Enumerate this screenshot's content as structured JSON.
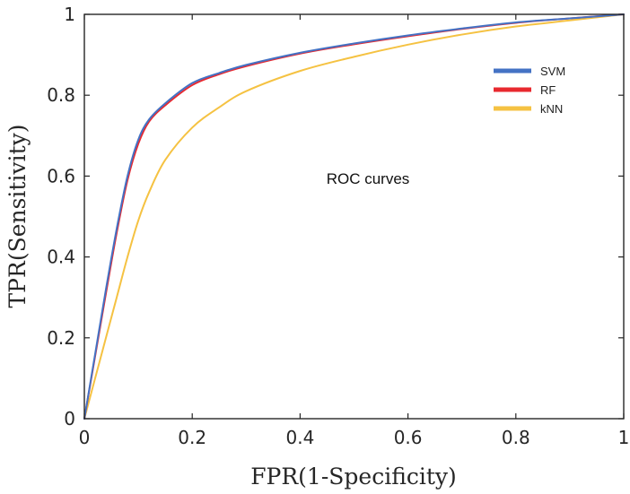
{
  "chart_data": {
    "type": "line",
    "xlabel": "FPR(1-Specificity)",
    "ylabel": "TPR(Sensitivity)",
    "xlim": [
      0,
      1
    ],
    "ylim": [
      0,
      1
    ],
    "xticks": [
      0,
      0.2,
      0.4,
      0.6,
      0.8,
      1
    ],
    "xtick_labels": [
      "0",
      "0.2",
      "0.4",
      "0.6",
      "0.8",
      "1"
    ],
    "yticks": [
      0,
      0.2,
      0.4,
      0.6,
      0.8,
      1
    ],
    "ytick_labels": [
      "0",
      "0.2",
      "0.4",
      "0.6",
      "0.8",
      "1"
    ],
    "grid": false,
    "legend_position": "top-right",
    "annotation": "ROC curves",
    "series": [
      {
        "name": "SVM",
        "color": "#4472C4",
        "x": [
          0,
          0.02,
          0.04,
          0.06,
          0.08,
          0.1,
          0.12,
          0.15,
          0.2,
          0.25,
          0.3,
          0.4,
          0.5,
          0.6,
          0.7,
          0.8,
          0.9,
          1.0
        ],
        "y": [
          0,
          0.16,
          0.32,
          0.47,
          0.6,
          0.69,
          0.74,
          0.78,
          0.83,
          0.855,
          0.875,
          0.905,
          0.928,
          0.948,
          0.965,
          0.98,
          0.99,
          1.0
        ]
      },
      {
        "name": "RF",
        "color": "#E8292F",
        "x": [
          0,
          0.02,
          0.04,
          0.06,
          0.08,
          0.1,
          0.12,
          0.15,
          0.2,
          0.25,
          0.3,
          0.4,
          0.5,
          0.6,
          0.7,
          0.8,
          0.9,
          1.0
        ],
        "y": [
          0,
          0.155,
          0.31,
          0.46,
          0.59,
          0.68,
          0.735,
          0.775,
          0.825,
          0.852,
          0.872,
          0.903,
          0.926,
          0.946,
          0.964,
          0.979,
          0.99,
          1.0
        ]
      },
      {
        "name": "kNN",
        "color": "#F5C242",
        "x": [
          0,
          0.02,
          0.04,
          0.06,
          0.08,
          0.1,
          0.12,
          0.15,
          0.2,
          0.25,
          0.3,
          0.4,
          0.5,
          0.6,
          0.7,
          0.8,
          0.9,
          1.0
        ],
        "y": [
          0,
          0.1,
          0.2,
          0.3,
          0.4,
          0.49,
          0.56,
          0.64,
          0.72,
          0.77,
          0.81,
          0.86,
          0.895,
          0.925,
          0.95,
          0.97,
          0.985,
          1.0
        ]
      }
    ]
  }
}
